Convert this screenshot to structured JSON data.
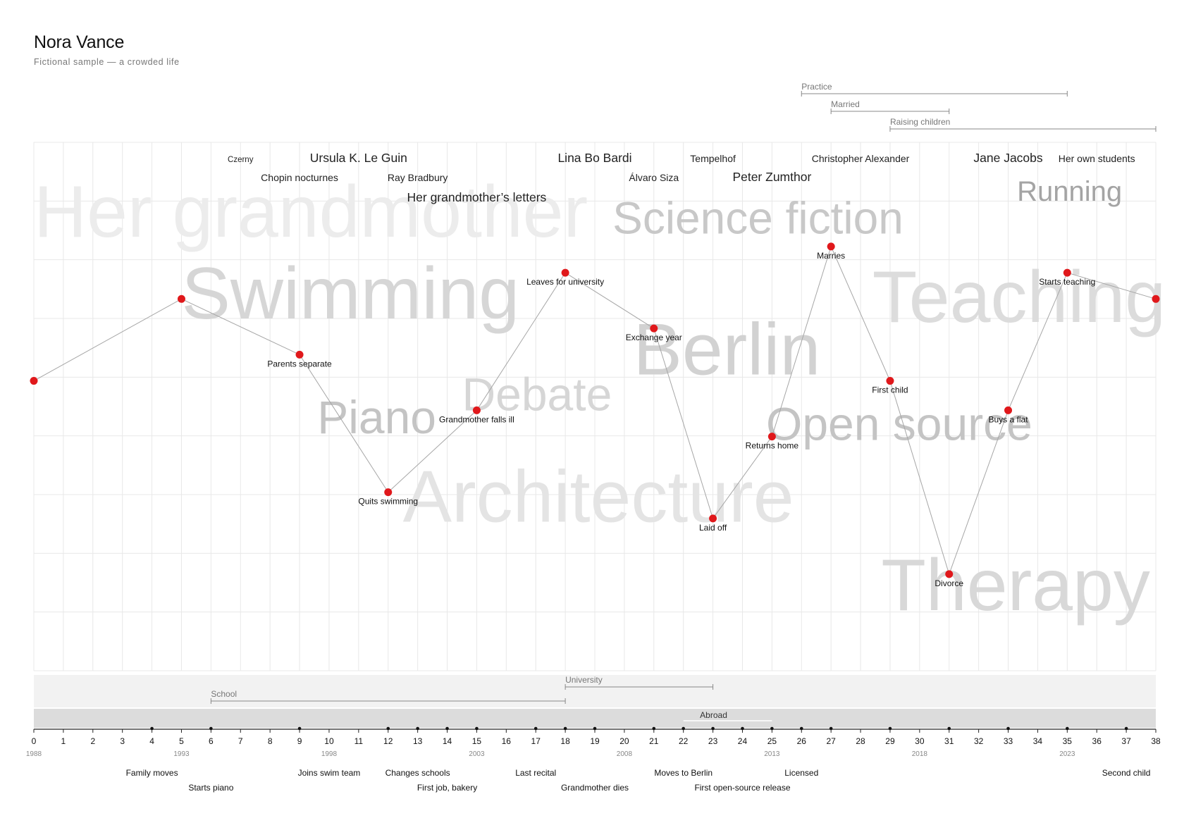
{
  "header": {
    "title": "Nora Vance",
    "subtitle": "Fictional sample — a crowded life"
  },
  "chart_data": {
    "type": "line",
    "x_axis": {
      "ages": [
        0,
        1,
        2,
        3,
        4,
        5,
        6,
        7,
        8,
        9,
        10,
        11,
        12,
        13,
        14,
        15,
        16,
        17,
        18,
        19,
        20,
        21,
        22,
        23,
        24,
        25,
        26,
        27,
        28,
        29,
        30,
        31,
        32,
        33,
        34,
        35,
        36,
        37,
        38
      ],
      "year_labels": [
        {
          "age": 0,
          "year": "1988"
        },
        {
          "age": 5,
          "year": "1993"
        },
        {
          "age": 10,
          "year": "1998"
        },
        {
          "age": 15,
          "year": "2003"
        },
        {
          "age": 20,
          "year": "2008"
        },
        {
          "age": 25,
          "year": "2013"
        },
        {
          "age": 30,
          "year": "2018"
        },
        {
          "age": 35,
          "year": "2023"
        }
      ]
    },
    "mood_line": [
      {
        "age": 0,
        "level": 0.53,
        "label": ""
      },
      {
        "age": 5,
        "level": 0.78,
        "label": ""
      },
      {
        "age": 9,
        "level": 0.61,
        "label": "Parents separate"
      },
      {
        "age": 12,
        "level": 0.19,
        "label": "Quits swimming"
      },
      {
        "age": 15,
        "level": 0.44,
        "label": "Grandmother falls ill"
      },
      {
        "age": 18,
        "level": 0.86,
        "label": "Leaves for university"
      },
      {
        "age": 21,
        "level": 0.69,
        "label": "Exchange year"
      },
      {
        "age": 23,
        "level": 0.11,
        "label": "Laid off"
      },
      {
        "age": 25,
        "level": 0.36,
        "label": "Returns home"
      },
      {
        "age": 27,
        "level": 0.94,
        "label": "Marries"
      },
      {
        "age": 29,
        "level": 0.53,
        "label": "First child"
      },
      {
        "age": 31,
        "level": -0.06,
        "label": "Divorce"
      },
      {
        "age": 33,
        "level": 0.44,
        "label": "Buys a flat"
      },
      {
        "age": 35,
        "level": 0.86,
        "label": "Starts teaching"
      },
      {
        "age": 38,
        "level": 0.78,
        "label": ""
      }
    ],
    "interests": [
      {
        "text": "Her grandmother",
        "age": 0,
        "level": 0.97,
        "shade": "#ececec"
      },
      {
        "text": "Swimming",
        "age": 5,
        "level": 0.72,
        "shade": "#d6d6d6"
      },
      {
        "text": "Piano",
        "age": 9.6,
        "level": 0.37,
        "shade": "#c4c4c4"
      },
      {
        "text": "Debate",
        "age": 14.5,
        "level": 0.44,
        "shade": "#d6d6d6"
      },
      {
        "text": "Architecture",
        "age": 12.5,
        "level": 0.1,
        "shade": "#e4e4e4"
      },
      {
        "text": "Science fiction",
        "age": 19.6,
        "level": 0.98,
        "shade": "#c8c8c8"
      },
      {
        "text": "Berlin",
        "age": 20.3,
        "level": 0.55,
        "shade": "#d2d2d2"
      },
      {
        "text": "Open source",
        "age": 24.8,
        "level": 0.35,
        "shade": "#c4c4c4"
      },
      {
        "text": "Teaching",
        "age": 28.4,
        "level": 0.71,
        "shade": "#dcdcdc"
      },
      {
        "text": "Therapy",
        "age": 28.7,
        "level": -0.17,
        "shade": "#d8d8d8"
      },
      {
        "text": "Running",
        "age": 33.3,
        "level": 1.08,
        "shade": "#a4a4a4"
      }
    ],
    "influences": [
      {
        "text": "Czerny",
        "age": 7,
        "row": 0,
        "size": "s"
      },
      {
        "text": "Ursula K. Le Guin",
        "age": 11,
        "row": 0,
        "size": "l"
      },
      {
        "text": "Chopin nocturnes",
        "age": 9,
        "row": 1,
        "size": "m"
      },
      {
        "text": "Ray Bradbury",
        "age": 13,
        "row": 1,
        "size": "m"
      },
      {
        "text": "Her grandmother’s letters",
        "age": 15,
        "row": 2,
        "size": "l"
      },
      {
        "text": "Lina Bo Bardi",
        "age": 19,
        "row": 0,
        "size": "l"
      },
      {
        "text": "Álvaro Siza",
        "age": 21,
        "row": 1,
        "size": "m"
      },
      {
        "text": "Tempelhof",
        "age": 23,
        "row": 0,
        "size": "m"
      },
      {
        "text": "Peter Zumthor",
        "age": 25,
        "row": 1,
        "size": "l"
      },
      {
        "text": "Christopher Alexander",
        "age": 28,
        "row": 0,
        "size": "m"
      },
      {
        "text": "Jane Jacobs",
        "age": 33,
        "row": 0,
        "size": "l"
      },
      {
        "text": "Her own students",
        "age": 36,
        "row": 0,
        "size": "m"
      }
    ],
    "top_periods": [
      {
        "label": "Practice",
        "start": 26,
        "end": 35
      },
      {
        "label": "Married",
        "start": 27,
        "end": 31
      },
      {
        "label": "Raising children",
        "start": 29,
        "end": 38
      }
    ],
    "bottom_periods": [
      {
        "label": "University",
        "start": 18,
        "end": 23,
        "row": 0
      },
      {
        "label": "School",
        "start": 6,
        "end": 18,
        "row": 1
      }
    ],
    "abroad": {
      "label": "Abroad",
      "start": 22,
      "end": 25
    },
    "events": [
      {
        "label": "Family moves",
        "age": 4,
        "row": 0
      },
      {
        "label": "Starts piano",
        "age": 6,
        "row": 1
      },
      {
        "label": "Joins swim team",
        "age": 10,
        "row": 0
      },
      {
        "label": "Changes schools",
        "age": 13,
        "row": 0
      },
      {
        "label": "First job, bakery",
        "age": 14,
        "row": 1
      },
      {
        "label": "Last recital",
        "age": 17,
        "row": 0
      },
      {
        "label": "Grandmother dies",
        "age": 19,
        "row": 1
      },
      {
        "label": "Moves to Berlin",
        "age": 22,
        "row": 0
      },
      {
        "label": "First open-source release",
        "age": 24,
        "row": 1
      },
      {
        "label": "Licensed",
        "age": 26,
        "row": 0
      },
      {
        "label": "Second child",
        "age": 37,
        "row": 0
      }
    ],
    "event_tick_ages": [
      4,
      6,
      9,
      12,
      13,
      14,
      15,
      17,
      18,
      19,
      21,
      22,
      23,
      24,
      25,
      26,
      27,
      29,
      31,
      33,
      35,
      37
    ],
    "colors": {
      "point": "#e0181b",
      "line": "#a6a6a6",
      "grid": "#e8e8e8",
      "axis": "#222222",
      "band_light": "#f2f2f2",
      "band_dark": "#dcdcdc",
      "period": "#888888"
    }
  }
}
